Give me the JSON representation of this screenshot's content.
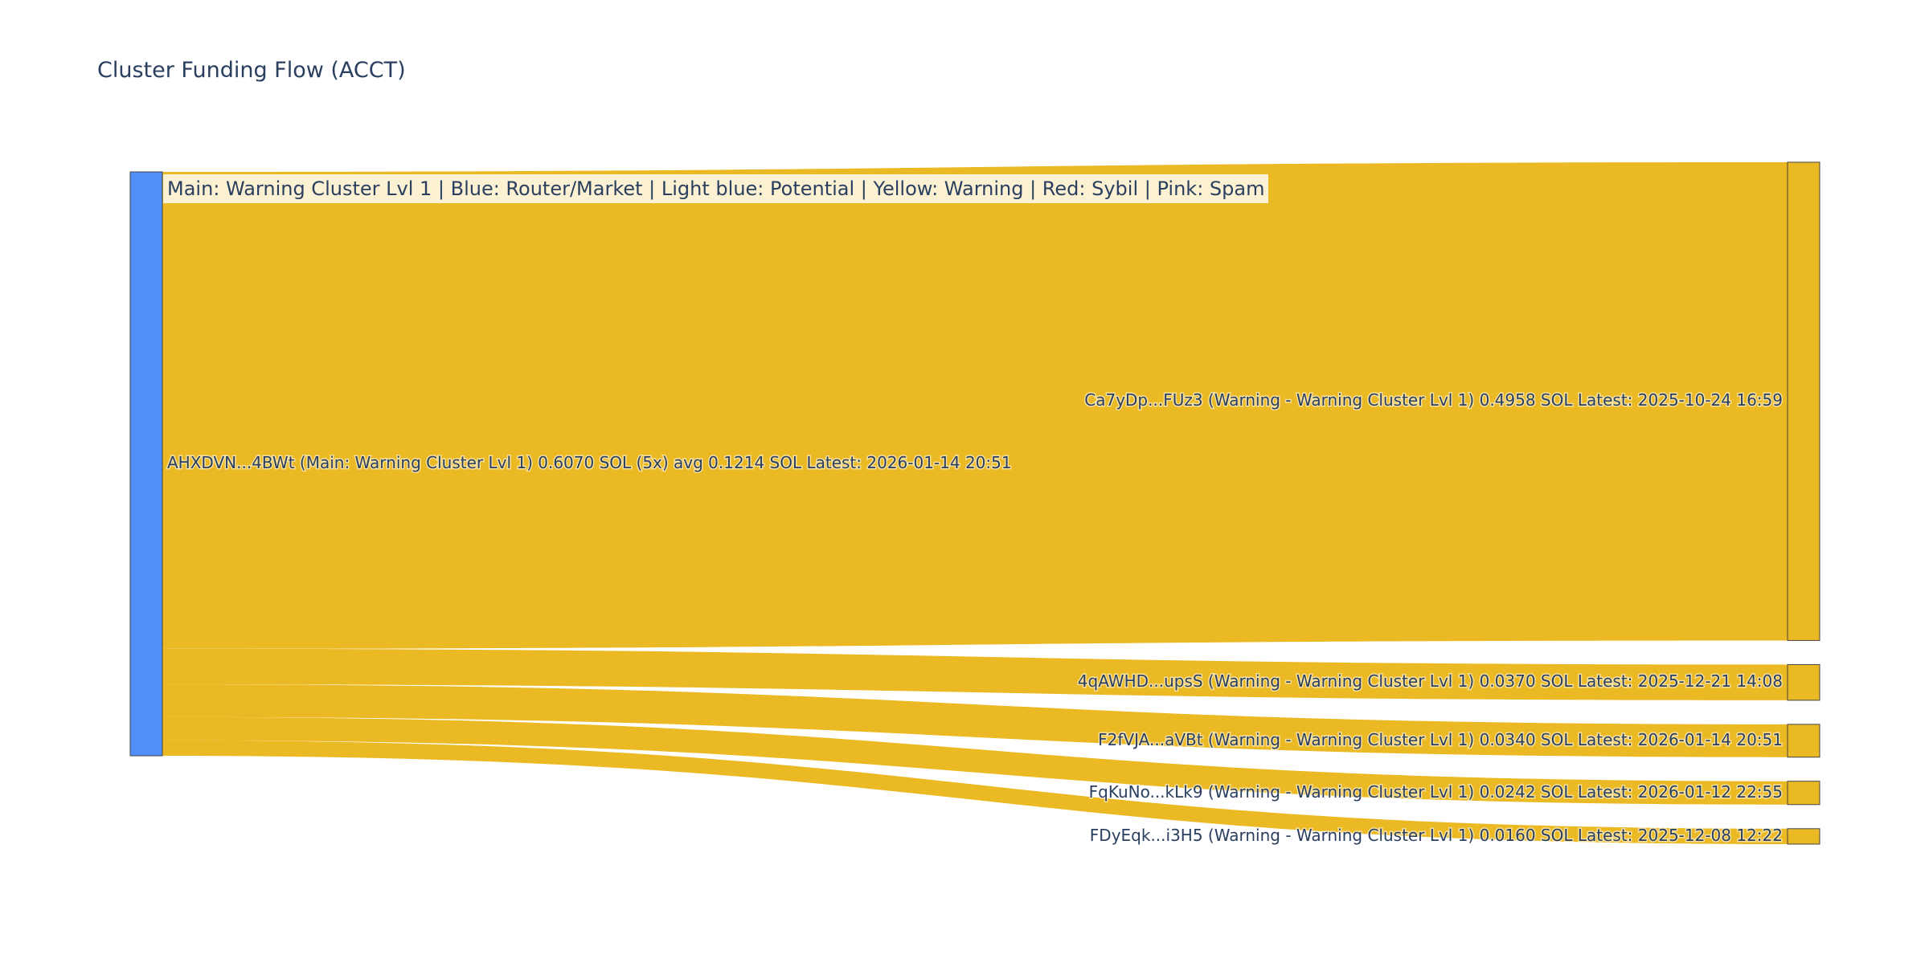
{
  "title": "Cluster Funding Flow (ACCT)",
  "legend_note": "Main: Warning Cluster Lvl 1  |  Blue: Router/Market | Light blue: Potential | Yellow: Warning | Red: Sybil | Pink: Spam",
  "colors": {
    "source_node": "#4f8ff7",
    "target_node": "#ebb923",
    "link": "#ebb923",
    "node_border": "#444444",
    "label": "#2a3f5f",
    "legend_bg": "#fdf1d3"
  },
  "chart_data": {
    "type": "sankey",
    "title": "Cluster Funding Flow (ACCT)",
    "unit": "SOL",
    "source": {
      "label": "AHXDVN...4BWt (Main: Warning Cluster Lvl 1) 0.6070 SOL (5x) avg 0.1214 SOL Latest: 2026-01-14 20:51",
      "value": 0.607
    },
    "targets": [
      {
        "label": "Ca7yDp...FUz3 (Warning - Warning Cluster Lvl 1) 0.4958 SOL Latest: 2025-10-24 16:59",
        "value": 0.4958
      },
      {
        "label": "4qAWHD...upsS (Warning - Warning Cluster Lvl 1) 0.0370 SOL Latest: 2025-12-21 14:08",
        "value": 0.037
      },
      {
        "label": "F2fVJA...aVBt (Warning - Warning Cluster Lvl 1) 0.0340 SOL Latest: 2026-01-14 20:51",
        "value": 0.034
      },
      {
        "label": "FqKuNo...kLk9 (Warning - Warning Cluster Lvl 1) 0.0242 SOL Latest: 2026-01-12 22:55",
        "value": 0.0242
      },
      {
        "label": "FDyEqk...i3H5 (Warning - Warning Cluster Lvl 1) 0.0160 SOL Latest: 2025-12-08 12:22",
        "value": 0.016
      }
    ]
  }
}
